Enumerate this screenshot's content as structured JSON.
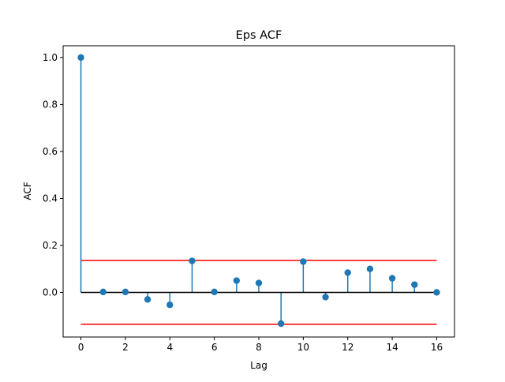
{
  "chart_data": {
    "type": "stem",
    "title": "Eps ACF",
    "xlabel": "Lag",
    "ylabel": "ACF",
    "x": [
      0,
      1,
      2,
      3,
      4,
      5,
      6,
      7,
      8,
      9,
      10,
      11,
      12,
      13,
      14,
      15,
      16
    ],
    "values": [
      1.0,
      0.002,
      0.002,
      -0.03,
      -0.053,
      0.134,
      0.002,
      0.05,
      0.04,
      -0.133,
      0.131,
      -0.02,
      0.084,
      0.1,
      0.06,
      0.033,
      0.0
    ],
    "confidence_bounds": [
      0.136,
      -0.136
    ],
    "xlim": [
      -0.8,
      16.8
    ],
    "ylim": [
      -0.19,
      1.05
    ],
    "xticks": [
      0,
      2,
      4,
      6,
      8,
      10,
      12,
      14,
      16
    ],
    "yticks": [
      0.0,
      0.2,
      0.4,
      0.6,
      0.8,
      1.0
    ],
    "ytick_labels": [
      "0.0",
      "0.2",
      "0.4",
      "0.6",
      "0.8",
      "1.0"
    ],
    "grid": false,
    "colors": {
      "stem": "#1f77b4",
      "baseline": "#000000",
      "bounds": "#ff0000"
    }
  }
}
